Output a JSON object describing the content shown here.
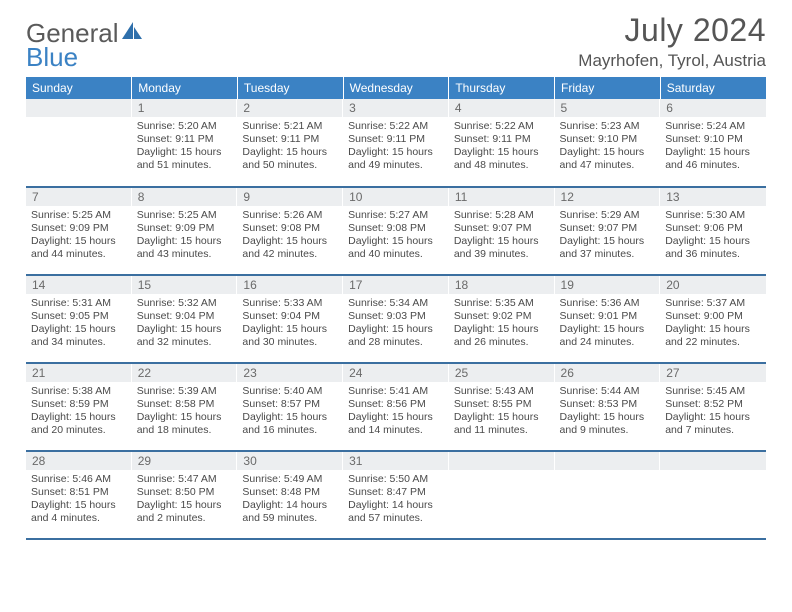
{
  "logo": {
    "word1": "General",
    "word2": "Blue"
  },
  "title": "July 2024",
  "location": "Mayrhofen, Tyrol, Austria",
  "colors": {
    "header_bg": "#3b82c4",
    "header_text": "#ffffff",
    "daynum_bg": "#eceef0",
    "border": "#3b6fa0",
    "body_text": "#4a4a4a",
    "logo_gray": "#5a5a5a",
    "logo_blue": "#3b82c4"
  },
  "weekdays": [
    "Sunday",
    "Monday",
    "Tuesday",
    "Wednesday",
    "Thursday",
    "Friday",
    "Saturday"
  ],
  "weeks": [
    [
      null,
      {
        "n": "1",
        "sr": "5:20 AM",
        "ss": "9:11 PM",
        "dl": "15 hours and 51 minutes."
      },
      {
        "n": "2",
        "sr": "5:21 AM",
        "ss": "9:11 PM",
        "dl": "15 hours and 50 minutes."
      },
      {
        "n": "3",
        "sr": "5:22 AM",
        "ss": "9:11 PM",
        "dl": "15 hours and 49 minutes."
      },
      {
        "n": "4",
        "sr": "5:22 AM",
        "ss": "9:11 PM",
        "dl": "15 hours and 48 minutes."
      },
      {
        "n": "5",
        "sr": "5:23 AM",
        "ss": "9:10 PM",
        "dl": "15 hours and 47 minutes."
      },
      {
        "n": "6",
        "sr": "5:24 AM",
        "ss": "9:10 PM",
        "dl": "15 hours and 46 minutes."
      }
    ],
    [
      {
        "n": "7",
        "sr": "5:25 AM",
        "ss": "9:09 PM",
        "dl": "15 hours and 44 minutes."
      },
      {
        "n": "8",
        "sr": "5:25 AM",
        "ss": "9:09 PM",
        "dl": "15 hours and 43 minutes."
      },
      {
        "n": "9",
        "sr": "5:26 AM",
        "ss": "9:08 PM",
        "dl": "15 hours and 42 minutes."
      },
      {
        "n": "10",
        "sr": "5:27 AM",
        "ss": "9:08 PM",
        "dl": "15 hours and 40 minutes."
      },
      {
        "n": "11",
        "sr": "5:28 AM",
        "ss": "9:07 PM",
        "dl": "15 hours and 39 minutes."
      },
      {
        "n": "12",
        "sr": "5:29 AM",
        "ss": "9:07 PM",
        "dl": "15 hours and 37 minutes."
      },
      {
        "n": "13",
        "sr": "5:30 AM",
        "ss": "9:06 PM",
        "dl": "15 hours and 36 minutes."
      }
    ],
    [
      {
        "n": "14",
        "sr": "5:31 AM",
        "ss": "9:05 PM",
        "dl": "15 hours and 34 minutes."
      },
      {
        "n": "15",
        "sr": "5:32 AM",
        "ss": "9:04 PM",
        "dl": "15 hours and 32 minutes."
      },
      {
        "n": "16",
        "sr": "5:33 AM",
        "ss": "9:04 PM",
        "dl": "15 hours and 30 minutes."
      },
      {
        "n": "17",
        "sr": "5:34 AM",
        "ss": "9:03 PM",
        "dl": "15 hours and 28 minutes."
      },
      {
        "n": "18",
        "sr": "5:35 AM",
        "ss": "9:02 PM",
        "dl": "15 hours and 26 minutes."
      },
      {
        "n": "19",
        "sr": "5:36 AM",
        "ss": "9:01 PM",
        "dl": "15 hours and 24 minutes."
      },
      {
        "n": "20",
        "sr": "5:37 AM",
        "ss": "9:00 PM",
        "dl": "15 hours and 22 minutes."
      }
    ],
    [
      {
        "n": "21",
        "sr": "5:38 AM",
        "ss": "8:59 PM",
        "dl": "15 hours and 20 minutes."
      },
      {
        "n": "22",
        "sr": "5:39 AM",
        "ss": "8:58 PM",
        "dl": "15 hours and 18 minutes."
      },
      {
        "n": "23",
        "sr": "5:40 AM",
        "ss": "8:57 PM",
        "dl": "15 hours and 16 minutes."
      },
      {
        "n": "24",
        "sr": "5:41 AM",
        "ss": "8:56 PM",
        "dl": "15 hours and 14 minutes."
      },
      {
        "n": "25",
        "sr": "5:43 AM",
        "ss": "8:55 PM",
        "dl": "15 hours and 11 minutes."
      },
      {
        "n": "26",
        "sr": "5:44 AM",
        "ss": "8:53 PM",
        "dl": "15 hours and 9 minutes."
      },
      {
        "n": "27",
        "sr": "5:45 AM",
        "ss": "8:52 PM",
        "dl": "15 hours and 7 minutes."
      }
    ],
    [
      {
        "n": "28",
        "sr": "5:46 AM",
        "ss": "8:51 PM",
        "dl": "15 hours and 4 minutes."
      },
      {
        "n": "29",
        "sr": "5:47 AM",
        "ss": "8:50 PM",
        "dl": "15 hours and 2 minutes."
      },
      {
        "n": "30",
        "sr": "5:49 AM",
        "ss": "8:48 PM",
        "dl": "14 hours and 59 minutes."
      },
      {
        "n": "31",
        "sr": "5:50 AM",
        "ss": "8:47 PM",
        "dl": "14 hours and 57 minutes."
      },
      null,
      null,
      null
    ]
  ],
  "labels": {
    "sunrise": "Sunrise:",
    "sunset": "Sunset:",
    "daylight": "Daylight:"
  }
}
